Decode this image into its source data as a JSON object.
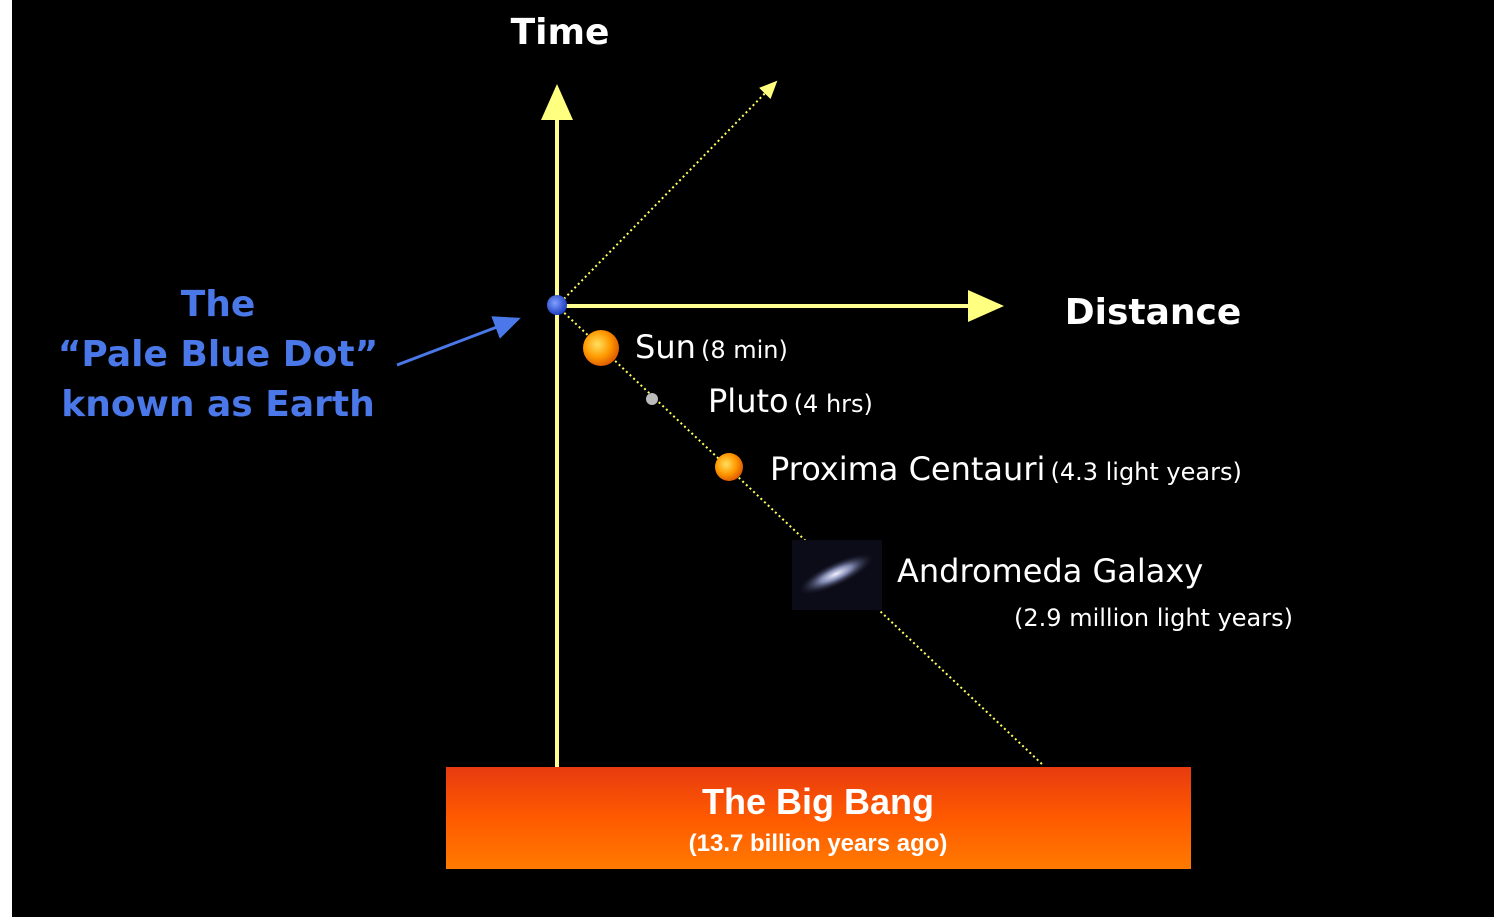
{
  "axes": {
    "time": "Time",
    "distance": "Distance"
  },
  "earth_label": {
    "lines": [
      "The",
      "“Pale Blue Dot”",
      "known as Earth"
    ]
  },
  "objects": [
    {
      "name": "Sun",
      "distance": "(8 min)"
    },
    {
      "name": "Pluto",
      "distance": "(4 hrs)"
    },
    {
      "name": "Proxima Centauri",
      "distance": "(4.3 light years)"
    },
    {
      "name": "Andromeda Galaxy",
      "distance": "(2.9 million light years)"
    }
  ],
  "big_bang": {
    "title": "The Big Bang",
    "subtitle": "(13.7 billion years ago)"
  }
}
